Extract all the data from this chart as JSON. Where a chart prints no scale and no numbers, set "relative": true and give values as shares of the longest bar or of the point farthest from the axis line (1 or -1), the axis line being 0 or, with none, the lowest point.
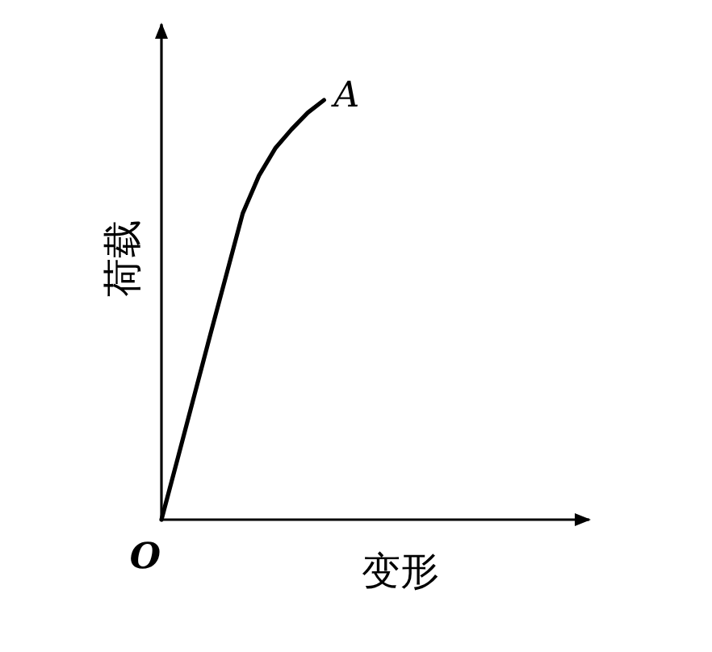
{
  "chart_data": {
    "type": "line",
    "relative": true,
    "xlabel": "变形",
    "ylabel": "荷载",
    "categories": [
      null,
      null,
      null,
      null,
      null,
      null,
      null,
      null,
      null,
      null,
      null
    ],
    "series": [
      {
        "color": "#000000",
        "values": [
          0,
          0.146,
          0.293,
          0.44,
          0.585,
          0.73,
          0.82,
          0.885,
          0.93,
          0.97,
          1
        ]
      }
    ],
    "annotations": [
      "A",
      "O"
    ]
  }
}
